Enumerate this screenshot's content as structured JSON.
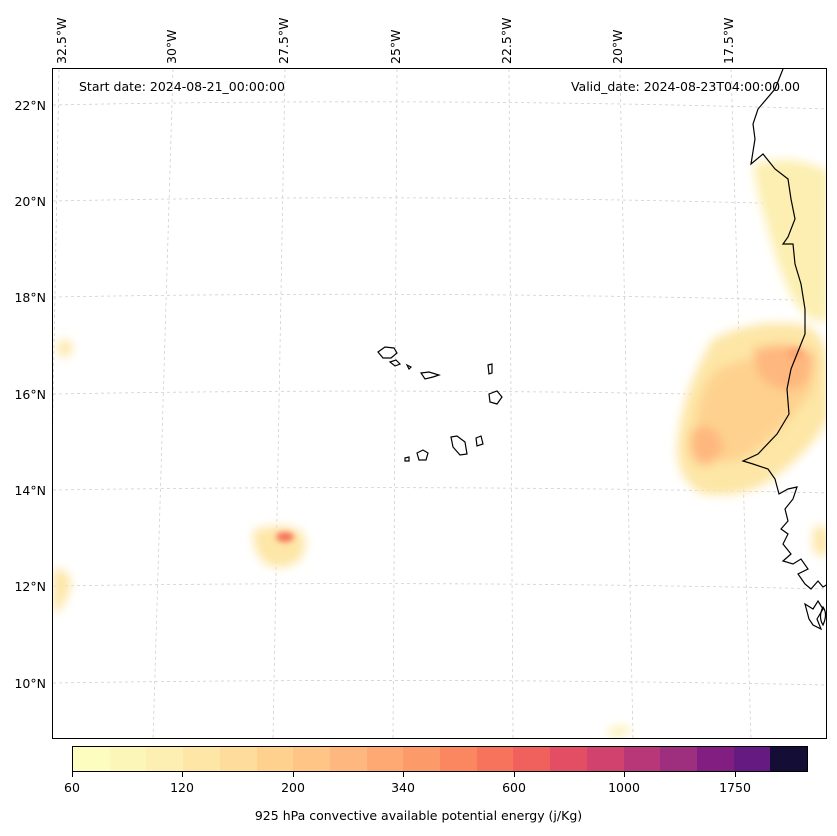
{
  "map": {
    "start_date": "Start date: 2024-08-21_00:00:00",
    "valid_date": "Valid_date: 2024-08-23T04:00:00.00",
    "lon_labels": [
      "32.5°W",
      "30°W",
      "27.5°W",
      "25°W",
      "22.5°W",
      "20°W",
      "17.5°W"
    ],
    "lat_labels": [
      "22°N",
      "20°N",
      "18°N",
      "16°N",
      "14°N",
      "12°N",
      "10°N"
    ],
    "region": "Cape Verde islands and West African coast",
    "field": "925 hPa convective available potential energy"
  },
  "colorbar": {
    "title": "925 hPa convective available potential energy (j/Kg)",
    "tick_labels": [
      "60",
      "120",
      "200",
      "340",
      "600",
      "1000",
      "1750"
    ],
    "colors": [
      "#fcfdbf",
      "#fcf6b8",
      "#fcefb1",
      "#fde6a6",
      "#fedd9c",
      "#fed18f",
      "#fec587",
      "#feb77e",
      "#fea873",
      "#fd9a6a",
      "#fb8761",
      "#f7735c",
      "#f0605d",
      "#e34e65",
      "#d1426f",
      "#b73779",
      "#9e2f7f",
      "#821d81",
      "#641a80",
      "#140e36"
    ]
  }
}
